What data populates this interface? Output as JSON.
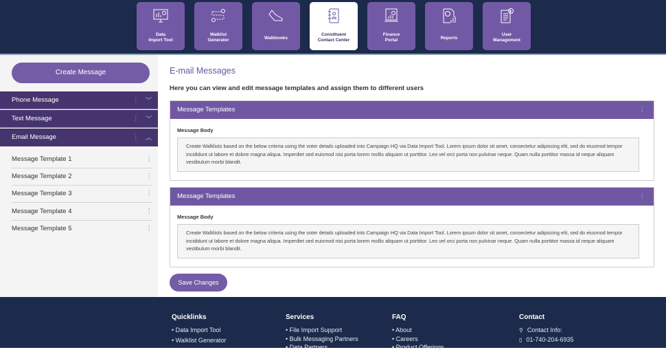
{
  "nav": {
    "tiles": [
      {
        "label1": "Data",
        "label2": "Import Tool",
        "icon": "monitor-chart-icon"
      },
      {
        "label1": "Walklist",
        "label2": "Generator",
        "icon": "route-pin-icon"
      },
      {
        "label1": "Walkbooks",
        "label2": "",
        "icon": "shoe-icon"
      },
      {
        "label1": "Constituent",
        "label2": "Contact Center",
        "icon": "address-book-icon",
        "active": true
      },
      {
        "label1": "Finance",
        "label2": "Portal",
        "icon": "laptop-finance-icon"
      },
      {
        "label1": "Reports",
        "label2": "",
        "icon": "report-chart-icon"
      },
      {
        "label1": "User",
        "label2": "Management",
        "icon": "document-info-icon"
      }
    ]
  },
  "sidebar": {
    "create_label": "Create Message",
    "sections": [
      {
        "label": "Phone Message",
        "expanded": false
      },
      {
        "label": "Text Message",
        "expanded": false
      },
      {
        "label": "Email Message",
        "expanded": true
      }
    ],
    "templates": [
      "Message Template 1",
      "Message Template 2",
      "Message Template 3",
      "Message Template 4",
      "Message Template 5"
    ]
  },
  "main": {
    "title": "E-mail Messages",
    "subtitle": "Here you can view and edit message templates and assign them to different users",
    "cards": [
      {
        "header": "Message Templates",
        "body_label": "Message  Body",
        "body": "Create Walklists based on the below criteria using the voter details uploaded into Campaign HQ via Data Import Tool. Lorem ipsum dolor sit amet, consectetur adipiscing elit, sed do eiusmod tempor incididunt ut labore et dolore magna aliqua. Imperdiet sed euismod nisi porta lorem mollis aliquam ut porttitor. Leo vel orci porta non pulvinar neque. Quam nulla porttitor massa id neque aliquam vestibulum morbi blandit."
      },
      {
        "header": "Message Templates",
        "body_label": "Message  Body",
        "body": "Create Walklists based on the below criteria using the voter details uploaded into Campaign HQ via Data Import Tool. Lorem ipsum dolor sit amet, consectetur adipiscing elit, sed do eiusmod tempor incididunt ut labore et dolore magna aliqua. Imperdiet sed euismod nisi porta lorem mollis aliquam ut porttitor. Leo vel orci porta non pulvinar neque. Quam nulla porttitor massa id neque aliquam vestibulum morbi blandit."
      }
    ],
    "save_label": "Save Changes"
  },
  "footer": {
    "quicklinks": {
      "title": "Quicklinks",
      "items": [
        "• Data Import Tool",
        "• Walklist Generator"
      ]
    },
    "services": {
      "title": "Services",
      "items": [
        "• File Import Support",
        "• Bulk Messaging Partners",
        "• Data Partners"
      ]
    },
    "faq": {
      "title": "FAQ",
      "items": [
        "• About",
        "• Careers",
        "• Product Offerings"
      ]
    },
    "contact": {
      "title": "Contact",
      "info_label": "Contact Info:",
      "phone": "01-740-204-6935"
    }
  },
  "colors": {
    "navy": "#1c2a4b",
    "purple": "#7259a5",
    "dark_purple": "#46346e",
    "title_purple": "#6a53a0"
  }
}
